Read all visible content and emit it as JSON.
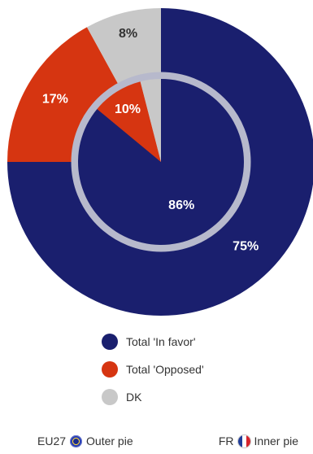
{
  "chart_data": {
    "type": "pie",
    "categories": [
      "Total 'In favor'",
      "Total 'Opposed'",
      "DK"
    ],
    "series": [
      {
        "name": "EU27",
        "ring": "outer",
        "values": [
          75,
          17,
          8
        ],
        "labels": [
          "75%",
          "17%",
          "8%"
        ]
      },
      {
        "name": "FR",
        "ring": "inner",
        "values": [
          86,
          10,
          4
        ],
        "labels": [
          "86%",
          "10%",
          ""
        ]
      }
    ],
    "colors": [
      "#1a1f6e",
      "#d63511",
      "#c8c8c8"
    ],
    "legend_position": "bottom"
  },
  "legend": {
    "items": [
      {
        "label": "Total 'In favor'",
        "color": "#1a1f6e"
      },
      {
        "label": "Total 'Opposed'",
        "color": "#d63511"
      },
      {
        "label": "DK",
        "color": "#c8c8c8"
      }
    ]
  },
  "footer": {
    "outer_code": "EU27",
    "outer_label": "Outer pie",
    "inner_code": "FR",
    "inner_label": "Inner pie",
    "outer_icon": "eu-flag-icon",
    "inner_icon": "fr-flag-icon"
  }
}
